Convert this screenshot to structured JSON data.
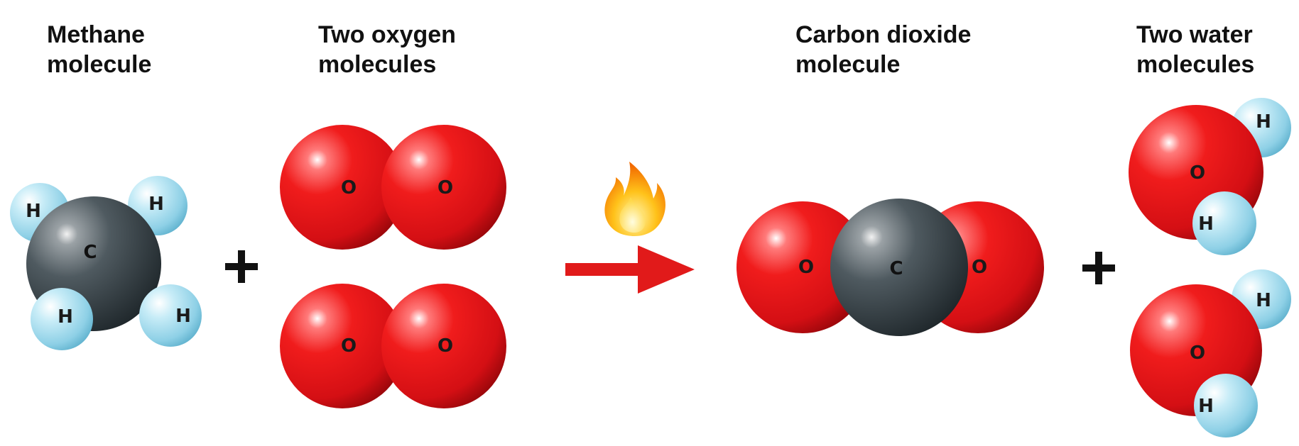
{
  "captions": {
    "methane": [
      "Methane",
      "molecule"
    ],
    "oxygen": [
      "Two oxygen",
      "molecules"
    ],
    "co2": [
      "Carbon dioxide",
      "molecule"
    ],
    "water": [
      "Two water",
      "molecules"
    ]
  },
  "atoms": {
    "carbon": "C",
    "oxygen": "O",
    "hydrogen": "H"
  },
  "colors": {
    "oxygen": "#e8111a",
    "carbon": "#3c474d",
    "hydrogen": "#8fd3ea",
    "arrow": "#e11a1a",
    "text": "#111111"
  },
  "icons": {
    "flame": "flame-icon",
    "arrow": "reaction-arrow-icon",
    "plus": "plus-icon"
  }
}
